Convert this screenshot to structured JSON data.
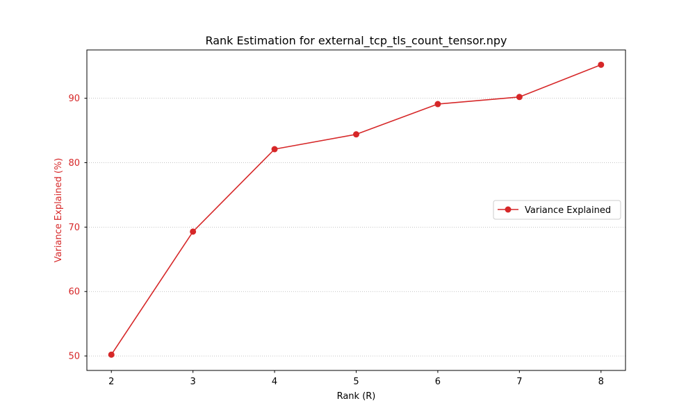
{
  "chart_data": {
    "type": "line",
    "title": "Rank Estimation for external_tcp_tls_count_tensor.npy",
    "xlabel": "Rank (R)",
    "ylabel": "Variance Explained (%)",
    "x": [
      2,
      3,
      4,
      5,
      6,
      7,
      8
    ],
    "xlim": [
      1.7,
      8.3
    ],
    "ylim": [
      47.75,
      97.5
    ],
    "xticks": [
      2,
      3,
      4,
      5,
      6,
      7,
      8
    ],
    "yticks": [
      50,
      60,
      70,
      80,
      90
    ],
    "grid": {
      "y": true,
      "x": false,
      "style": "dotted"
    },
    "legend": {
      "placement": "center-right"
    },
    "series": [
      {
        "name": "Variance Explained",
        "values": [
          50.2,
          69.3,
          82.1,
          84.4,
          89.1,
          90.2,
          95.2
        ],
        "color": "#d62728",
        "marker": "circle"
      }
    ],
    "colors": {
      "axis_label": "#d62728",
      "tick_label_y": "#d62728",
      "grid": "#b0b0b0"
    }
  }
}
